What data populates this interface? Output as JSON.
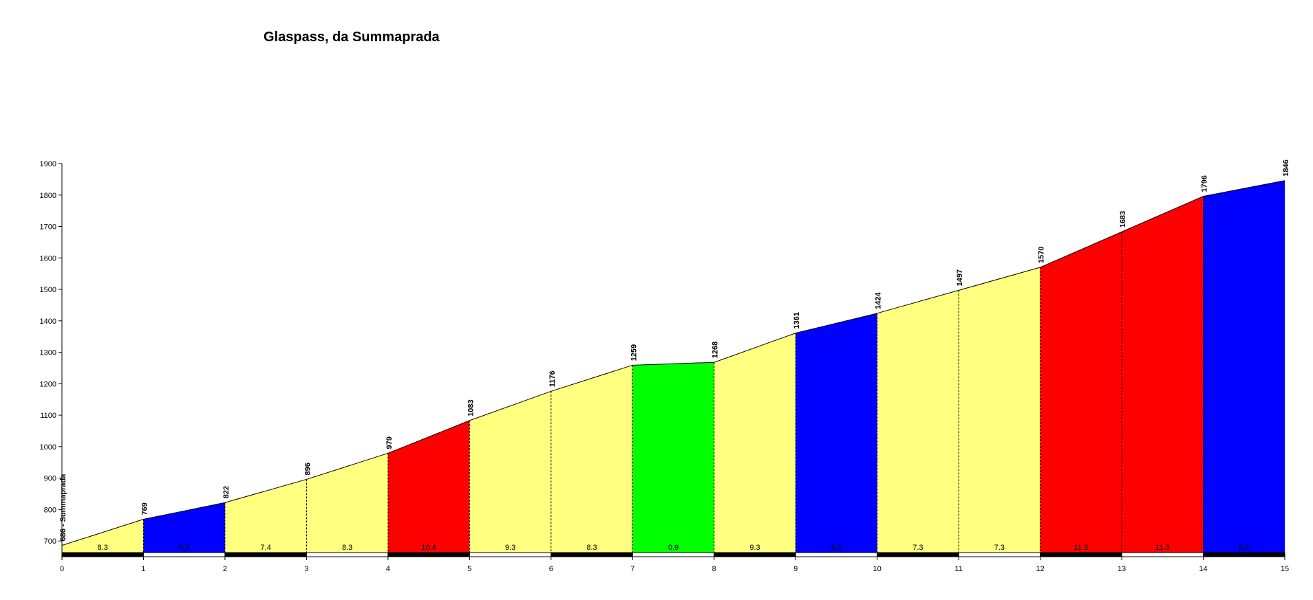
{
  "chart_data": {
    "type": "area",
    "title": "Glaspass, da Summaprada",
    "xlabel": "",
    "ylabel": "",
    "xlim": [
      0,
      15
    ],
    "ylim": [
      650,
      1900
    ],
    "x_ticks": [
      "0",
      "1",
      "2",
      "3",
      "4",
      "5",
      "6",
      "7",
      "8",
      "9",
      "10",
      "11",
      "12",
      "13",
      "14",
      "15"
    ],
    "y_ticks": [
      "700",
      "800",
      "900",
      "1000",
      "1100",
      "1200",
      "1300",
      "1400",
      "1500",
      "1600",
      "1700",
      "1800",
      "1900"
    ],
    "x": [
      0,
      1,
      2,
      3,
      4,
      5,
      6,
      7,
      8,
      9,
      10,
      11,
      12,
      13,
      14,
      15
    ],
    "elevations": [
      686,
      769,
      822,
      896,
      979,
      1083,
      1176,
      1259,
      1268,
      1361,
      1424,
      1497,
      1570,
      1683,
      1796,
      1846
    ],
    "point_labels": [
      "686 - Summaprada",
      "769",
      "822",
      "896",
      "979",
      "1083",
      "1176",
      "1259",
      "1268",
      "1361",
      "1424",
      "1497",
      "1570",
      "1683",
      "1796",
      "1846"
    ],
    "gradients": [
      "8.3",
      "5.3",
      "7.4",
      "8.3",
      "10.4",
      "9.3",
      "8.3",
      "0.9",
      "9.3",
      "6.3",
      "7.3",
      "7.3",
      "11.3",
      "11.3",
      "5.0"
    ],
    "segment_colors": [
      "#ffff80",
      "#0000ff",
      "#ffff80",
      "#ffff80",
      "#ff0000",
      "#ffff80",
      "#ffff80",
      "#00ff00",
      "#ffff80",
      "#0000ff",
      "#ffff80",
      "#ffff80",
      "#ff0000",
      "#ff0000",
      "#0000ff"
    ],
    "grid": false,
    "legend": "none"
  }
}
